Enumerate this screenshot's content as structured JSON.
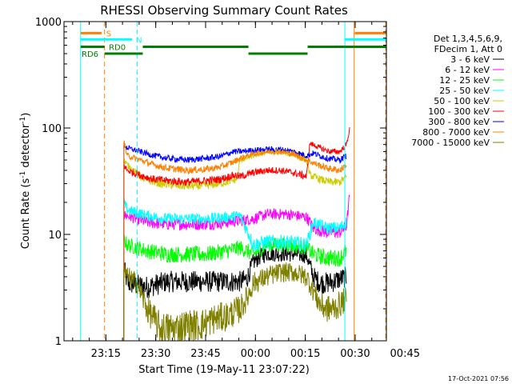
{
  "chart_data": {
    "type": "line",
    "title": "RHESSI Observing Summary Count Rates",
    "xlabel": "Start Time (19-May-11 23:07:22)",
    "ylabel_main": "Count Rate (s",
    "ylabel_sup1": "-1",
    "ylabel_mid": " detector",
    "ylabel_sup2": "-1",
    "ylabel_end": ")",
    "y_scale": "log",
    "ylim": [
      1,
      1000
    ],
    "xlim_minutes": [
      -5,
      92
    ],
    "y_ticks": [
      {
        "value": 1,
        "label": "1"
      },
      {
        "value": 10,
        "label": "10"
      },
      {
        "value": 100,
        "label": "100"
      },
      {
        "value": 1000,
        "label": "1000"
      }
    ],
    "x_ticks": [
      {
        "min": 7.6,
        "label": "23:15"
      },
      {
        "min": 22.6,
        "label": "23:30"
      },
      {
        "min": 37.6,
        "label": "23:45"
      },
      {
        "min": 52.6,
        "label": "00:00"
      },
      {
        "min": 67.6,
        "label": "00:15"
      },
      {
        "min": 82.6,
        "label": "00:30"
      },
      {
        "min": 97.6,
        "label": "00:45"
      }
    ],
    "legend_header": [
      "Det 1,3,4,5,6,9,",
      "FDecim 1, Att 0"
    ],
    "legend_position": "right",
    "grid": false,
    "data_gap_minutes": [
      [
        0,
        13
      ],
      [
        80,
        84
      ]
    ],
    "series": [
      {
        "name": "3 - 6 keV",
        "color": "#000000",
        "x": [
          13,
          14,
          20,
          26,
          32,
          38,
          44,
          48,
          50,
          52,
          54,
          56,
          62,
          68,
          70,
          72,
          74,
          76,
          78,
          80
        ],
        "y": [
          5,
          3.5,
          3.2,
          3.6,
          3.6,
          3.6,
          3.6,
          3.6,
          3.8,
          5.5,
          6.2,
          6.6,
          6.6,
          6.4,
          4,
          3.5,
          3.5,
          3.6,
          3.8,
          4
        ]
      },
      {
        "name": "6 - 12 keV",
        "color": "#ff00ff",
        "x": [
          13,
          14,
          20,
          26,
          32,
          38,
          44,
          48,
          52,
          56,
          62,
          68,
          70,
          74,
          78,
          80,
          81
        ],
        "y": [
          15,
          15,
          13,
          12.5,
          12.5,
          12.5,
          13,
          13.5,
          14,
          15.5,
          15.5,
          14.5,
          11.5,
          10.5,
          10.5,
          12,
          25
        ]
      },
      {
        "name": "12 - 25 keV",
        "color": "#00ff00",
        "x": [
          13,
          14,
          20,
          26,
          32,
          38,
          44,
          48,
          52,
          56,
          62,
          68,
          70,
          74,
          78,
          80
        ],
        "y": [
          9,
          8,
          7,
          6.5,
          6.5,
          6.5,
          7,
          7.5,
          6.5,
          8,
          8,
          7.5,
          6.5,
          6,
          6,
          7
        ]
      },
      {
        "name": "25 - 50 keV",
        "color": "#00ffff",
        "x": [
          13,
          14,
          20,
          26,
          32,
          38,
          44,
          48,
          52,
          56,
          62,
          68,
          70,
          74,
          78,
          80
        ],
        "y": [
          20,
          17,
          15,
          14,
          14,
          14,
          14.5,
          15,
          8,
          8.5,
          8.5,
          8,
          13,
          11.5,
          11.5,
          13
        ]
      },
      {
        "name": "50 - 100 keV",
        "color": "#cccc00",
        "x": [
          13,
          14,
          19,
          24,
          30,
          36,
          42,
          47,
          48,
          52,
          56,
          60,
          64,
          68,
          69,
          72,
          75,
          78,
          80
        ],
        "y": [
          50,
          45,
          33,
          30,
          28.5,
          28.5,
          30,
          33,
          50,
          55,
          60,
          60,
          56,
          50,
          36,
          33,
          31,
          31,
          35
        ]
      },
      {
        "name": "100 - 300 keV",
        "color": "#ff0000",
        "x": [
          13,
          14,
          18,
          22,
          26,
          32,
          38,
          42,
          46,
          48,
          52,
          56,
          60,
          64,
          68,
          69,
          72,
          75,
          78,
          80,
          81
        ],
        "y": [
          45,
          40,
          36,
          33,
          32,
          31,
          32,
          33,
          36,
          35,
          38,
          40,
          40,
          38,
          35,
          72,
          65,
          60,
          60,
          70,
          100
        ]
      },
      {
        "name": "300 - 800 keV",
        "color": "#0000ff",
        "x": [
          13,
          14,
          18,
          22,
          26,
          32,
          38,
          42,
          46,
          48,
          52,
          56,
          60,
          64,
          68,
          70,
          74,
          78,
          80
        ],
        "y": [
          70,
          65,
          60,
          55,
          52,
          50,
          52,
          54,
          60,
          60,
          62,
          63,
          63,
          60,
          55,
          58,
          52,
          50,
          55
        ]
      },
      {
        "name": "800 - 7000 keV",
        "color": "#ff8000",
        "x": [
          13,
          14,
          18,
          22,
          26,
          32,
          38,
          42,
          46,
          48,
          52,
          56,
          60,
          64,
          68,
          70,
          74,
          78,
          80
        ],
        "y": [
          75,
          55,
          50,
          45,
          42,
          40,
          41,
          43,
          48,
          52,
          57,
          60,
          60,
          57,
          50,
          47,
          42,
          40,
          45
        ]
      },
      {
        "name": "7000 - 15000 keV",
        "color": "#808000",
        "x": [
          13,
          14,
          17,
          20,
          24,
          28,
          32,
          36,
          40,
          44,
          48,
          50,
          52,
          56,
          60,
          64,
          68,
          70,
          72,
          74,
          76,
          78,
          80
        ],
        "y": [
          4.5,
          4,
          3.5,
          2,
          1.3,
          1.3,
          1.4,
          1.4,
          1.6,
          1.7,
          2,
          2.5,
          3.5,
          4,
          4.4,
          4.4,
          4,
          3,
          2.2,
          2,
          2,
          2.2,
          2.5
        ]
      }
    ],
    "annotations": {
      "flags": [
        {
          "label": "S",
          "color": "#ff8000",
          "value": 780,
          "x0": 0,
          "x1": 6.3,
          "label_x": 7.7
        },
        {
          "label": "S",
          "color": "#ff8000",
          "value": 780,
          "x0": 82.5,
          "x1": 92,
          "label_x": null
        },
        {
          "label": "N",
          "color": "#00ffff",
          "value": 680,
          "x0": 0,
          "x1": 15.5,
          "label_x": 16.7
        },
        {
          "label": "N",
          "color": "#00ffff",
          "value": 680,
          "x0": 79.5,
          "x1": 92,
          "label_x": null
        },
        {
          "label": "RD0",
          "color": "#008000",
          "value": 580,
          "x0": 0,
          "x1": 7.2,
          "label_x": 8.5
        },
        {
          "label": "RD0",
          "color": "#008000",
          "value": 580,
          "x0": 18.7,
          "x1": 50.5,
          "label_x": null
        },
        {
          "label": "RD0",
          "color": "#008000",
          "value": 580,
          "x0": 68.3,
          "x1": 92,
          "label_x": null
        },
        {
          "label": "RD6",
          "color": "#008000",
          "value": 500,
          "x0": 7.2,
          "x1": 18.7,
          "label_x": 0.3
        },
        {
          "label": "RD6",
          "color": "#008000",
          "value": 500,
          "x0": 50.5,
          "x1": 68.3,
          "label_x": null
        }
      ],
      "vlines": [
        {
          "x": 0,
          "color": "#00ffff",
          "style": "solid"
        },
        {
          "x": 7.2,
          "color": "#ff8000",
          "style": "dash"
        },
        {
          "x": 17.0,
          "color": "#00ffff",
          "style": "dash"
        },
        {
          "x": 79.5,
          "color": "#00ffff",
          "style": "solid"
        },
        {
          "x": 82.3,
          "color": "#ff8000",
          "style": "solid"
        },
        {
          "x": 91.8,
          "color": "#ff8000",
          "style": "dash"
        },
        {
          "x": 92.0,
          "color": "#00ffff",
          "style": "dash"
        }
      ]
    }
  },
  "footer_timestamp": "17-Oct-2021 07:56"
}
